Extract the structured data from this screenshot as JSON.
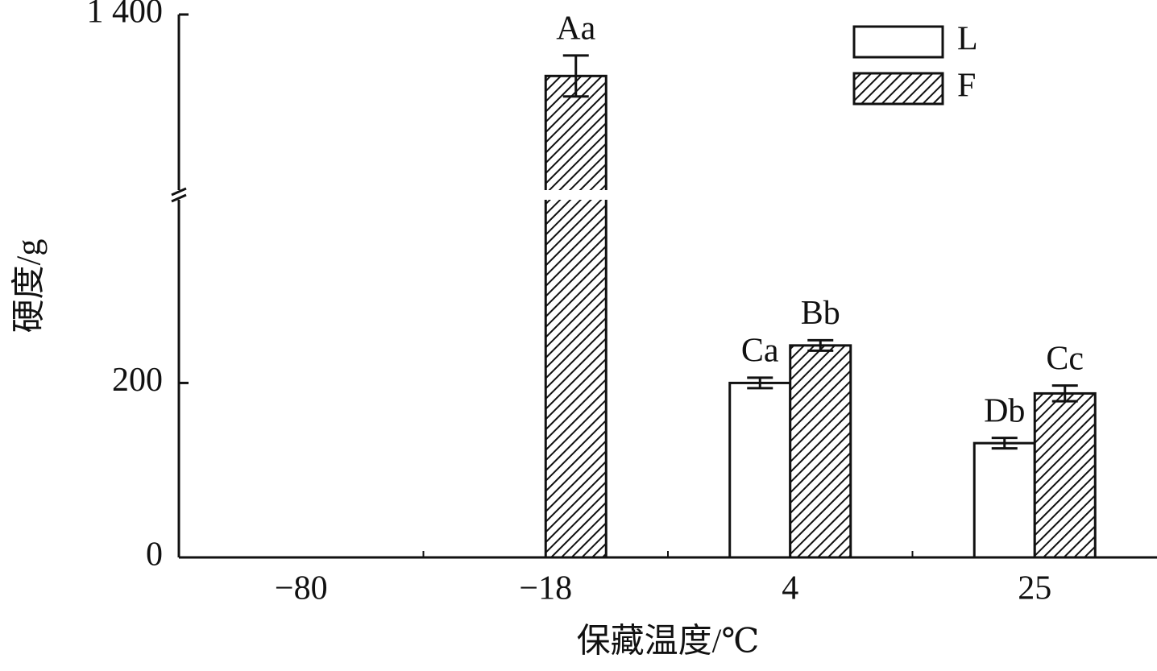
{
  "chart_data": {
    "type": "bar",
    "y_label": "硬度/g",
    "x_label": "保藏温度/℃",
    "categories": [
      "−80",
      "−18",
      "4",
      "25"
    ],
    "series": [
      {
        "name": "L",
        "color": "#ffffff",
        "hatch": false,
        "values": [
          null,
          null,
          200,
          131
        ],
        "errors": [
          null,
          null,
          6,
          6
        ],
        "labels": [
          null,
          null,
          "Ca",
          "Db"
        ]
      },
      {
        "name": "F",
        "color": "#ffffff",
        "hatch": true,
        "values": [
          null,
          1295,
          243,
          188
        ],
        "errors": [
          null,
          35,
          6,
          9
        ],
        "labels": [
          null,
          "Aa",
          "Bb",
          "Cc"
        ]
      }
    ],
    "ylim": [
      0,
      1400
    ],
    "y_break": [
      410,
      1100
    ],
    "yticks": [
      0,
      200,
      {
        "value": 1400,
        "label": "1 400"
      }
    ],
    "grid": false,
    "legend": "top-right"
  }
}
